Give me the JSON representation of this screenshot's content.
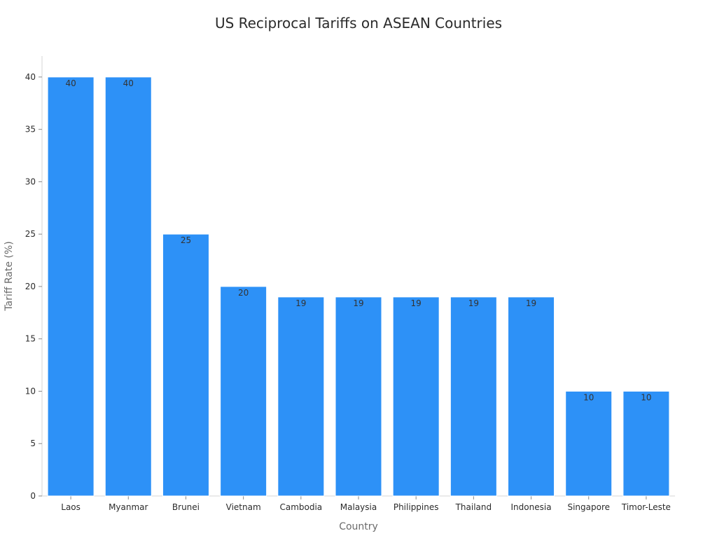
{
  "chart_data": {
    "type": "bar",
    "title": "US Reciprocal Tariffs on ASEAN Countries",
    "xlabel": "Country",
    "ylabel": "Tariff Rate (%)",
    "categories": [
      "Laos",
      "Myanmar",
      "Brunei",
      "Vietnam",
      "Cambodia",
      "Malaysia",
      "Philippines",
      "Thailand",
      "Indonesia",
      "Singapore",
      "Timor-Leste"
    ],
    "values": [
      40,
      40,
      25,
      20,
      19,
      19,
      19,
      19,
      19,
      10,
      10
    ],
    "data_labels": [
      "40",
      "40",
      "25",
      "20",
      "19",
      "19",
      "19",
      "19",
      "19",
      "10",
      "10"
    ],
    "ylim": [
      0,
      42
    ],
    "yticks": [
      0,
      5,
      10,
      15,
      20,
      25,
      30,
      35,
      40
    ],
    "ytick_labels": [
      "0",
      "5",
      "10",
      "15",
      "20",
      "25",
      "30",
      "35",
      "40"
    ],
    "grid": false,
    "bar_color": "#2d91f7"
  }
}
